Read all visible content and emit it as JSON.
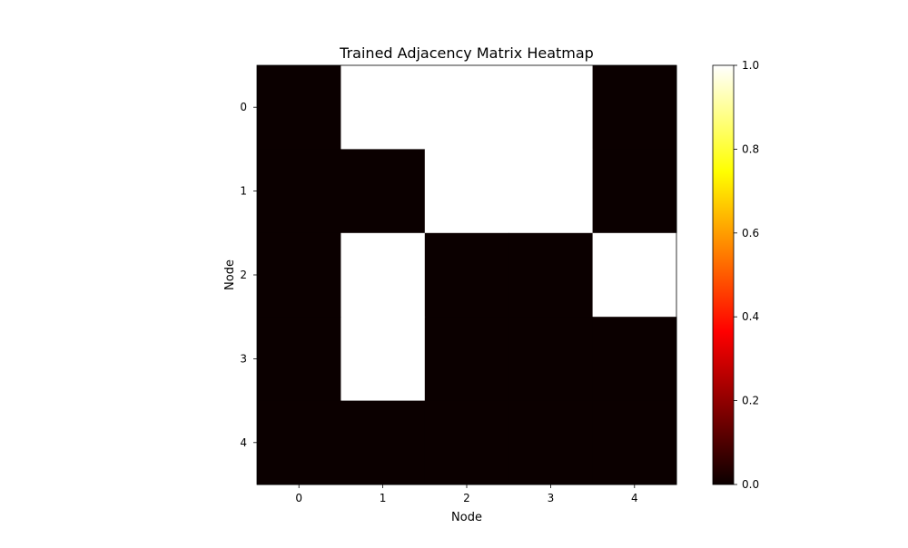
{
  "chart_data": {
    "type": "heatmap",
    "title": "Trained Adjacency Matrix Heatmap",
    "xlabel": "Node",
    "ylabel": "Node",
    "x_categories": [
      "0",
      "1",
      "2",
      "3",
      "4"
    ],
    "y_categories": [
      "0",
      "1",
      "2",
      "3",
      "4"
    ],
    "values": [
      [
        0,
        1,
        1,
        1,
        0
      ],
      [
        0,
        0,
        1,
        1,
        0
      ],
      [
        0,
        1,
        0,
        0,
        1
      ],
      [
        0,
        1,
        0,
        0,
        0
      ],
      [
        0,
        0,
        0,
        0,
        0
      ]
    ],
    "colormap": "hot",
    "colorbar": {
      "range": [
        0.0,
        1.0
      ],
      "ticks": [
        "0.0",
        "0.2",
        "0.4",
        "0.6",
        "0.8",
        "1.0"
      ]
    },
    "grid": false
  }
}
